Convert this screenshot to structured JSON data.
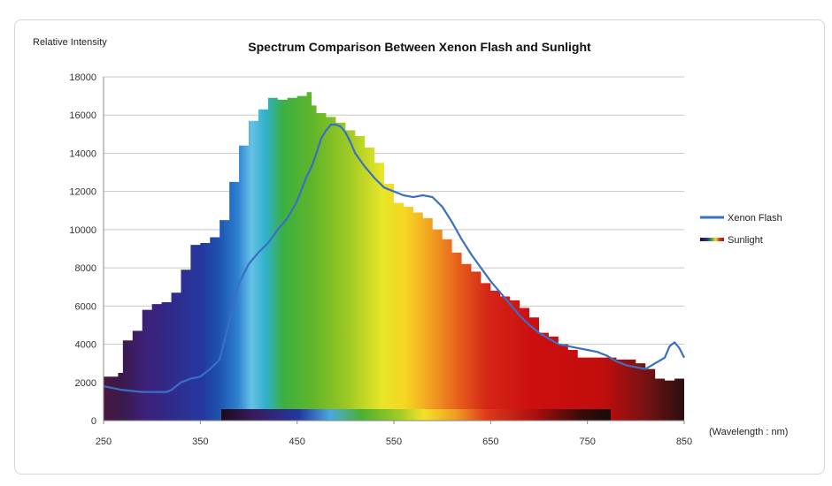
{
  "chart_data": {
    "type": "line",
    "title": "Spectrum Comparison Between Xenon Flash and Sunlight",
    "ylabel": "Relative Intensity",
    "xlabel": "(Wavelength : nm)",
    "xlim": [
      250,
      850
    ],
    "ylim": [
      0,
      18000
    ],
    "x_ticks": [
      "250",
      "350",
      "450",
      "550",
      "650",
      "750",
      "850"
    ],
    "y_ticks": [
      "0",
      "2000",
      "4000",
      "6000",
      "8000",
      "10000",
      "12000",
      "14000",
      "16000",
      "18000"
    ],
    "grid": true,
    "legend_position": "right",
    "colors": {
      "xenon": "#3a6fc4",
      "axis": "#888888",
      "grid": "#c8c8c8"
    },
    "series": [
      {
        "name": "Xenon Flash",
        "style": "line",
        "x": [
          250,
          270,
          290,
          300,
          315,
          320,
          330,
          340,
          350,
          360,
          370,
          380,
          390,
          400,
          410,
          420,
          430,
          440,
          450,
          460,
          465,
          470,
          475,
          480,
          485,
          490,
          495,
          500,
          505,
          510,
          520,
          530,
          540,
          550,
          560,
          570,
          580,
          590,
          600,
          610,
          620,
          630,
          640,
          650,
          660,
          670,
          680,
          690,
          700,
          710,
          720,
          730,
          740,
          750,
          760,
          770,
          780,
          790,
          800,
          810,
          820,
          830,
          835,
          840,
          845,
          850
        ],
        "y": [
          1800,
          1600,
          1500,
          1500,
          1500,
          1600,
          2000,
          2200,
          2300,
          2700,
          3200,
          5200,
          7200,
          8200,
          8800,
          9300,
          10000,
          10600,
          11500,
          12800,
          13300,
          14000,
          14800,
          15200,
          15500,
          15500,
          15400,
          15100,
          14600,
          14000,
          13300,
          12700,
          12200,
          12000,
          11800,
          11700,
          11800,
          11700,
          11200,
          10400,
          9500,
          8700,
          8000,
          7300,
          6700,
          6100,
          5500,
          5000,
          4600,
          4300,
          4000,
          3900,
          3800,
          3700,
          3600,
          3400,
          3100,
          2900,
          2800,
          2700,
          3000,
          3300,
          3900,
          4100,
          3800,
          3300
        ]
      },
      {
        "name": "Sunlight",
        "style": "spectrum-area",
        "x": [
          250,
          265,
          270,
          280,
          290,
          300,
          310,
          320,
          330,
          340,
          350,
          360,
          370,
          380,
          390,
          400,
          410,
          420,
          430,
          440,
          450,
          460,
          465,
          470,
          480,
          490,
          500,
          510,
          520,
          530,
          540,
          550,
          560,
          570,
          580,
          590,
          600,
          610,
          620,
          630,
          640,
          650,
          660,
          670,
          680,
          690,
          700,
          710,
          720,
          730,
          740,
          750,
          760,
          770,
          780,
          790,
          800,
          810,
          820,
          830,
          840,
          850
        ],
        "y": [
          2300,
          2500,
          4200,
          4700,
          5800,
          6100,
          6200,
          6700,
          7900,
          9200,
          9300,
          9600,
          10500,
          12500,
          14400,
          15700,
          16300,
          16900,
          16800,
          16900,
          17000,
          17200,
          16500,
          16100,
          15900,
          15600,
          15200,
          14900,
          14300,
          13500,
          12400,
          11400,
          11200,
          10900,
          10600,
          10000,
          9500,
          8800,
          8200,
          7800,
          7200,
          6800,
          6500,
          6300,
          5900,
          5400,
          4600,
          4400,
          4000,
          3700,
          3300,
          3300,
          3300,
          3300,
          3200,
          3200,
          3000,
          2700,
          2200,
          2100,
          2200,
          2500
        ]
      }
    ]
  }
}
